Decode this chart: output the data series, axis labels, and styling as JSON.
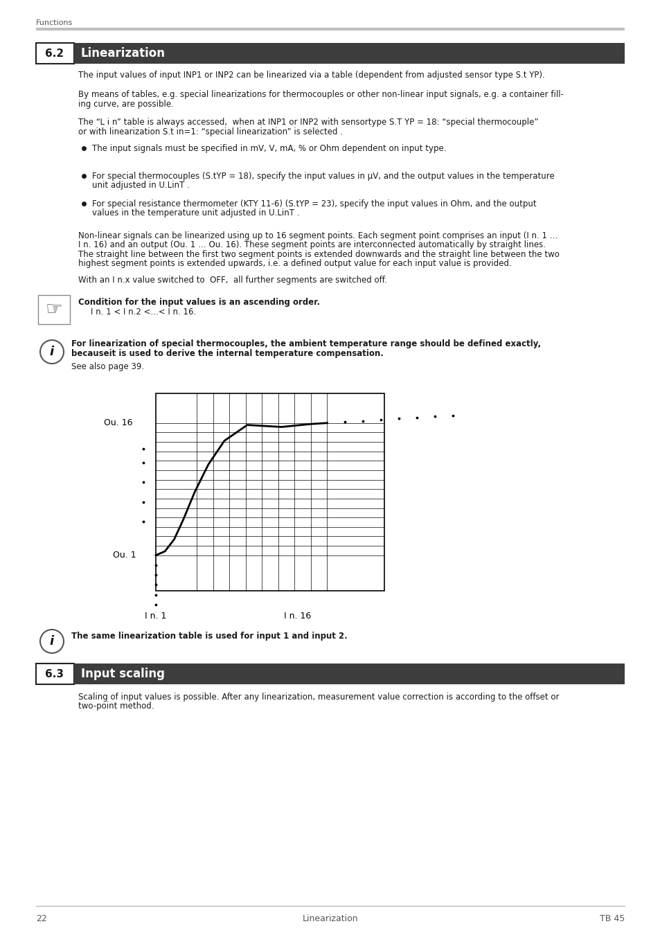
{
  "page_bg": "#ffffff",
  "header_text": "Functions",
  "header_line_color": "#cccccc",
  "section_num_62": "6.2",
  "section_title_62": "Linearization",
  "section_bar_color": "#3d3d3d",
  "section_title_color": "#ffffff",
  "section_num_63": "6.3",
  "section_title_63": "Input scaling",
  "body_text_color": "#1a1a1a",
  "body_font_size": 8.5,
  "footer_page": "22",
  "footer_center": "Linearization",
  "footer_right": "TB 45",
  "graph_label_ou16": "Ou. 16",
  "graph_label_ou1": "Ou. 1",
  "graph_label_in1": "I n. 1",
  "graph_label_in16": "I n. 16"
}
